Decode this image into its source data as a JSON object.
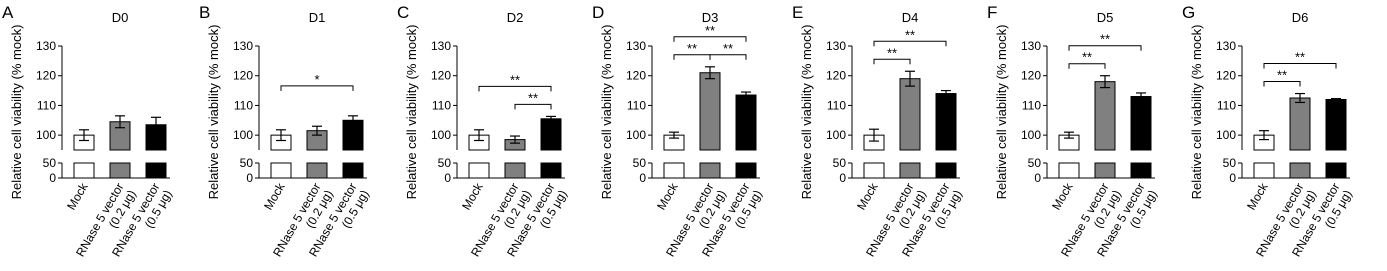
{
  "chart_data": [
    {
      "type": "bar",
      "panel": "A",
      "title": "D0",
      "y_label": "Relative cell viability (% mock)",
      "categories": [
        [
          "Mock"
        ],
        [
          "RNase 5 vector",
          "(0.2 μg)"
        ],
        [
          "RNase 5 vector",
          "(0.5 μg)"
        ]
      ],
      "values": [
        100,
        104.5,
        103.5
      ],
      "errors": [
        1.8,
        2,
        2.5
      ],
      "colors": [
        "#ffffff",
        "#808080",
        "#000000"
      ],
      "ylim": [
        95,
        130
      ],
      "yticks": [
        100,
        110,
        120,
        130
      ],
      "ylim_lower": [
        0,
        50
      ],
      "yticks_lower": [
        0,
        50
      ],
      "significance": []
    },
    {
      "type": "bar",
      "panel": "B",
      "title": "D1",
      "y_label": "Relative cell viability (% mock)",
      "categories": [
        [
          "Mock"
        ],
        [
          "RNase 5 vector",
          "(0.2 μg)"
        ],
        [
          "RNase 5 vector",
          "(0.5 μg)"
        ]
      ],
      "values": [
        100,
        101.5,
        105
      ],
      "errors": [
        1.8,
        1.5,
        1.5
      ],
      "colors": [
        "#ffffff",
        "#808080",
        "#000000"
      ],
      "ylim": [
        95,
        130
      ],
      "yticks": [
        100,
        110,
        120,
        130
      ],
      "ylim_lower": [
        0,
        50
      ],
      "yticks_lower": [
        0,
        50
      ],
      "significance": [
        {
          "from": 0,
          "to": 2,
          "label": "*"
        }
      ]
    },
    {
      "type": "bar",
      "panel": "C",
      "title": "D2",
      "y_label": "Relative cell viability (% mock)",
      "categories": [
        [
          "Mock"
        ],
        [
          "RNase 5 vector",
          "(0.2 μg)"
        ],
        [
          "RNase 5 vector",
          "(0.5 μg)"
        ]
      ],
      "values": [
        100,
        98.5,
        105.5
      ],
      "errors": [
        1.8,
        1.2,
        0.8
      ],
      "colors": [
        "#ffffff",
        "#808080",
        "#000000"
      ],
      "ylim": [
        95,
        130
      ],
      "yticks": [
        100,
        110,
        120,
        130
      ],
      "ylim_lower": [
        0,
        50
      ],
      "yticks_lower": [
        0,
        50
      ],
      "significance": [
        {
          "from": 0,
          "to": 2,
          "label": "**"
        },
        {
          "from": 1,
          "to": 2,
          "label": "**"
        }
      ]
    },
    {
      "type": "bar",
      "panel": "D",
      "title": "D3",
      "y_label": "Relative cell viability (% mock)",
      "categories": [
        [
          "Mock"
        ],
        [
          "RNase 5 vector",
          "(0.2 μg)"
        ],
        [
          "RNase 5 vector",
          "(0.5 μg)"
        ]
      ],
      "values": [
        100,
        121,
        113.5
      ],
      "errors": [
        1,
        2,
        1
      ],
      "colors": [
        "#ffffff",
        "#808080",
        "#000000"
      ],
      "ylim": [
        95,
        130
      ],
      "yticks": [
        100,
        110,
        120,
        130
      ],
      "ylim_lower": [
        0,
        50
      ],
      "yticks_lower": [
        0,
        50
      ],
      "significance": [
        {
          "from": 0,
          "to": 2,
          "label": "**"
        },
        {
          "from": 0,
          "to": 1,
          "label": "**"
        },
        {
          "from": 1,
          "to": 2,
          "label": "**"
        }
      ]
    },
    {
      "type": "bar",
      "panel": "E",
      "title": "D4",
      "y_label": "Relative cell viability (% mock)",
      "categories": [
        [
          "Mock"
        ],
        [
          "RNase 5 vector",
          "(0.2 μg)"
        ],
        [
          "RNase 5 vector",
          "(0.5 μg)"
        ]
      ],
      "values": [
        100,
        119,
        114
      ],
      "errors": [
        2,
        2.5,
        1
      ],
      "colors": [
        "#ffffff",
        "#808080",
        "#000000"
      ],
      "ylim": [
        95,
        130
      ],
      "yticks": [
        100,
        110,
        120,
        130
      ],
      "ylim_lower": [
        0,
        50
      ],
      "yticks_lower": [
        0,
        50
      ],
      "significance": [
        {
          "from": 0,
          "to": 2,
          "label": "**"
        },
        {
          "from": 0,
          "to": 1,
          "label": "**"
        }
      ]
    },
    {
      "type": "bar",
      "panel": "F",
      "title": "D5",
      "y_label": "Relative cell viability (% mock)",
      "categories": [
        [
          "Mock"
        ],
        [
          "RNase 5 vector",
          "(0.2 μg)"
        ],
        [
          "RNase 5 vector",
          "(0.5 μg)"
        ]
      ],
      "values": [
        100,
        118,
        113
      ],
      "errors": [
        1,
        2,
        1.2
      ],
      "colors": [
        "#ffffff",
        "#808080",
        "#000000"
      ],
      "ylim": [
        95,
        130
      ],
      "yticks": [
        100,
        110,
        120,
        130
      ],
      "ylim_lower": [
        0,
        50
      ],
      "yticks_lower": [
        0,
        50
      ],
      "significance": [
        {
          "from": 0,
          "to": 2,
          "label": "**"
        },
        {
          "from": 0,
          "to": 1,
          "label": "**"
        }
      ]
    },
    {
      "type": "bar",
      "panel": "G",
      "title": "D6",
      "y_label": "Relative cell viability (% mock)",
      "categories": [
        [
          "Mock"
        ],
        [
          "RNase 5 vector",
          "(0.2 μg)"
        ],
        [
          "RNase 5 vector",
          "(0.5 μg)"
        ]
      ],
      "values": [
        100,
        112.5,
        112
      ],
      "errors": [
        1.5,
        1.5,
        0.3
      ],
      "colors": [
        "#ffffff",
        "#808080",
        "#000000"
      ],
      "ylim": [
        95,
        130
      ],
      "yticks": [
        100,
        110,
        120,
        130
      ],
      "ylim_lower": [
        0,
        50
      ],
      "yticks_lower": [
        0,
        50
      ],
      "significance": [
        {
          "from": 0,
          "to": 2,
          "label": "**"
        },
        {
          "from": 0,
          "to": 1,
          "label": "**"
        }
      ]
    }
  ]
}
